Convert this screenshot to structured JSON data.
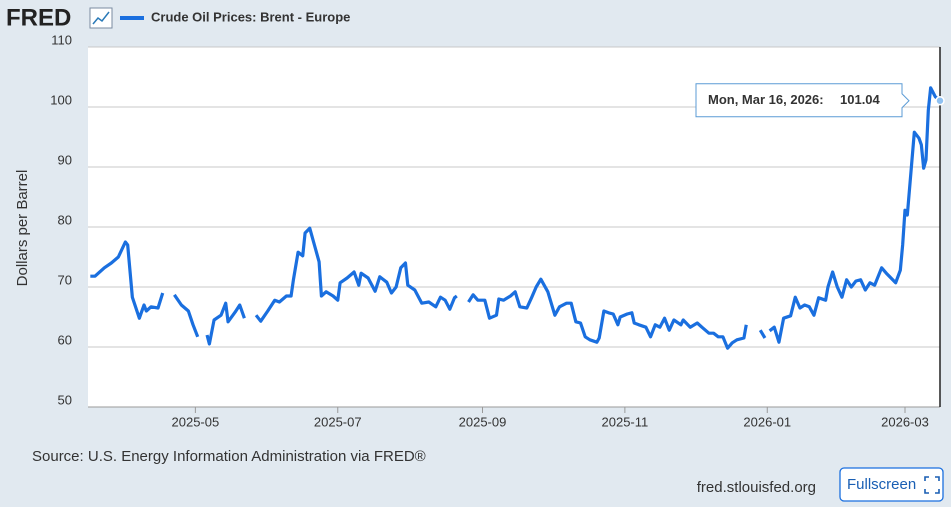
{
  "logo": "FRED",
  "source": "Source: U.S. Energy Information Administration via FRED®",
  "site": "fred.stlouisfed.org",
  "button": "Fullscreen",
  "chart_data": {
    "type": "line",
    "ylabel": "Dollars per Barrel",
    "xlim": [
      "2025-03-16",
      "2026-03-16"
    ],
    "ylim": [
      50,
      110
    ],
    "yticks": [
      50,
      60,
      70,
      80,
      90,
      100,
      110
    ],
    "xticks": [
      {
        "value": "2025-05-01",
        "label": "2025-05"
      },
      {
        "value": "2025-07-01",
        "label": "2025-07"
      },
      {
        "value": "2025-09-01",
        "label": "2025-09"
      },
      {
        "value": "2025-11-01",
        "label": "2025-11"
      },
      {
        "value": "2026-01-01",
        "label": "2026-01"
      },
      {
        "value": "2026-03-01",
        "label": "2026-03"
      }
    ],
    "grid": true,
    "tooltip": {
      "label": "Mon, Mar 16, 2026:"
    },
    "x": [
      "2025-03-17",
      "2025-03-19",
      "2025-03-23",
      "2025-03-26",
      "2025-03-29",
      "2025-04-01",
      "2025-04-02",
      "2025-04-04",
      "2025-04-07",
      "2025-04-09",
      "2025-04-10",
      "2025-04-12",
      "2025-04-15",
      "2025-04-17",
      "2025-04-20",
      "2025-04-22",
      "2025-04-25",
      "2025-04-28",
      "2025-04-30",
      "2025-05-02",
      "2025-05-05",
      "2025-05-06",
      "2025-05-07",
      "2025-05-09",
      "2025-05-12",
      "2025-05-14",
      "2025-05-15",
      "2025-05-18",
      "2025-05-20",
      "2025-05-22",
      "2025-05-26",
      "2025-05-27",
      "2025-05-29",
      "2025-06-01",
      "2025-06-04",
      "2025-06-06",
      "2025-06-09",
      "2025-06-11",
      "2025-06-12",
      "2025-06-14",
      "2025-06-16",
      "2025-06-17",
      "2025-06-19",
      "2025-06-21",
      "2025-06-23",
      "2025-06-24",
      "2025-06-26",
      "2025-06-29",
      "2025-07-01",
      "2025-07-02",
      "2025-07-05",
      "2025-07-08",
      "2025-07-10",
      "2025-07-11",
      "2025-07-14",
      "2025-07-17",
      "2025-07-19",
      "2025-07-22",
      "2025-07-24",
      "2025-07-26",
      "2025-07-28",
      "2025-07-30",
      "2025-07-31",
      "2025-08-03",
      "2025-08-06",
      "2025-08-09",
      "2025-08-12",
      "2025-08-14",
      "2025-08-16",
      "2025-08-18",
      "2025-08-20",
      "2025-08-21",
      "2025-08-25",
      "2025-08-26",
      "2025-08-28",
      "2025-08-30",
      "2025-09-02",
      "2025-09-04",
      "2025-09-07",
      "2025-09-08",
      "2025-09-10",
      "2025-09-13",
      "2025-09-15",
      "2025-09-17",
      "2025-09-20",
      "2025-09-22",
      "2025-09-24",
      "2025-09-26",
      "2025-09-29",
      "2025-10-02",
      "2025-10-04",
      "2025-10-07",
      "2025-10-09",
      "2025-10-11",
      "2025-10-13",
      "2025-10-15",
      "2025-10-17",
      "2025-10-20",
      "2025-10-21",
      "2025-10-23",
      "2025-10-25",
      "2025-10-27",
      "2025-10-29",
      "2025-10-30",
      "2025-11-02",
      "2025-11-04",
      "2025-11-05",
      "2025-11-07",
      "2025-11-10",
      "2025-11-12",
      "2025-11-14",
      "2025-11-16",
      "2025-11-18",
      "2025-11-20",
      "2025-11-22",
      "2025-11-25",
      "2025-11-26",
      "2025-11-29",
      "2025-12-02",
      "2025-12-04",
      "2025-12-07",
      "2025-12-09",
      "2025-12-11",
      "2025-12-13",
      "2025-12-15",
      "2025-12-17",
      "2025-12-19",
      "2025-12-22",
      "2025-12-23",
      "2025-12-25",
      "2025-12-29",
      "2025-12-31",
      "2026-01-01",
      "2026-01-02",
      "2026-01-04",
      "2026-01-06",
      "2026-01-08",
      "2026-01-11",
      "2026-01-13",
      "2026-01-15",
      "2026-01-17",
      "2026-01-19",
      "2026-01-21",
      "2026-01-23",
      "2026-01-26",
      "2026-01-27",
      "2026-01-29",
      "2026-01-31",
      "2026-02-02",
      "2026-02-04",
      "2026-02-06",
      "2026-02-08",
      "2026-02-10",
      "2026-02-12",
      "2026-02-14",
      "2026-02-16",
      "2026-02-19",
      "2026-02-21",
      "2026-02-23",
      "2026-02-25",
      "2026-02-27",
      "2026-02-28",
      "2026-03-01",
      "2026-03-02",
      "2026-03-05",
      "2026-03-07",
      "2026-03-08",
      "2026-03-09",
      "2026-03-10",
      "2026-03-11",
      "2026-03-12",
      "2026-03-14",
      "2026-03-16"
    ],
    "series": [
      {
        "name": "Crude Oil Prices: Brent - Europe",
        "color": "#1a6fdf",
        "values": [
          71.8,
          71.8,
          73.2,
          74,
          75,
          77.5,
          77,
          68.3,
          64.8,
          67,
          66,
          66.7,
          66.5,
          69,
          null,
          68.7,
          67,
          66,
          63.7,
          61.7,
          null,
          62,
          60.5,
          64.5,
          65.3,
          67.3,
          64.2,
          65.8,
          67,
          64.8,
          null,
          65.3,
          64.3,
          66,
          67.8,
          67.5,
          68.5,
          68.5,
          71.2,
          75.8,
          75.2,
          79,
          79.8,
          77,
          74.2,
          68.5,
          69.2,
          68.5,
          67.8,
          70.7,
          71.5,
          72.5,
          70.3,
          72.3,
          71.5,
          69.3,
          71.7,
          70.8,
          69,
          70,
          73.2,
          74,
          70.3,
          69.5,
          67.3,
          67.5,
          66.7,
          68.3,
          67.8,
          66.3,
          68.2,
          68.5,
          null,
          67.5,
          68.7,
          67.8,
          67.8,
          64.8,
          65.3,
          68,
          67.8,
          68.5,
          69.2,
          66.7,
          66.5,
          68.2,
          70,
          71.3,
          69.2,
          65.3,
          66.7,
          67.3,
          67.3,
          64.2,
          64,
          61.7,
          61.2,
          60.8,
          61.5,
          66,
          65.7,
          65.5,
          63.7,
          65,
          65.5,
          65.7,
          64,
          63.7,
          63.3,
          61.7,
          63.7,
          63.3,
          64.8,
          62.8,
          64.5,
          63.7,
          64.5,
          63.3,
          64,
          63.3,
          62.3,
          62.3,
          61.7,
          61.7,
          59.8,
          60.7,
          61.2,
          61.5,
          63.7,
          null,
          62.8,
          61.5,
          null,
          62.7,
          63.3,
          60.8,
          64.8,
          65.2,
          68.3,
          66.5,
          67,
          66.7,
          65.3,
          68.2,
          67.8,
          70,
          72.5,
          70,
          68.3,
          71.2,
          70,
          71,
          71.2,
          69.5,
          70.7,
          70.3,
          73.2,
          72.3,
          71.5,
          70.7,
          72.8,
          77,
          82.8,
          82,
          95.8,
          94.8,
          93.7,
          89.8,
          91.2,
          99.5,
          103.2,
          101.7,
          101.04
        ]
      }
    ]
  }
}
